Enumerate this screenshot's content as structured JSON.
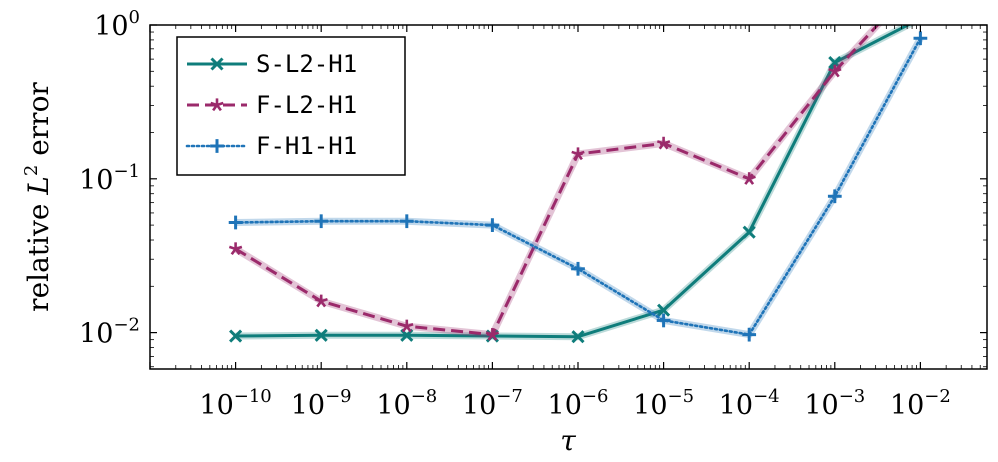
{
  "chart_data": {
    "type": "line",
    "xscale": "log",
    "yscale": "log",
    "xlabel": "τ",
    "ylabel": "relative L² error",
    "ylabel_parts": {
      "prefix": "relative ",
      "var": "L",
      "sup": "2",
      "suffix": " error"
    },
    "xlim": [
      1e-11,
      0.06
    ],
    "ylim": [
      0.0058,
      1.0
    ],
    "x_ticks": [
      {
        "value": 1e-10,
        "base": "10",
        "exp": "−10"
      },
      {
        "value": 1e-09,
        "base": "10",
        "exp": "−9"
      },
      {
        "value": 1e-08,
        "base": "10",
        "exp": "−8"
      },
      {
        "value": 1e-07,
        "base": "10",
        "exp": "−7"
      },
      {
        "value": 1e-06,
        "base": "10",
        "exp": "−6"
      },
      {
        "value": 1e-05,
        "base": "10",
        "exp": "−5"
      },
      {
        "value": 0.0001,
        "base": "10",
        "exp": "−4"
      },
      {
        "value": 0.001,
        "base": "10",
        "exp": "−3"
      },
      {
        "value": 0.01,
        "base": "10",
        "exp": "−2"
      }
    ],
    "y_ticks": [
      {
        "value": 0.01,
        "base": "10",
        "exp": "−2"
      },
      {
        "value": 0.1,
        "base": "10",
        "exp": "−1"
      },
      {
        "value": 1,
        "base": "10",
        "exp": "0"
      }
    ],
    "grid": false,
    "legend_position": "top-left",
    "series": [
      {
        "name": "S-L2-H1",
        "color": "#0f7d7b",
        "dash": "solid",
        "marker": "x",
        "x": [
          1e-10,
          1e-09,
          1e-08,
          1e-07,
          1e-06,
          1e-05,
          0.0001,
          0.001,
          0.01
        ],
        "y": [
          0.0095,
          0.0096,
          0.0096,
          0.0095,
          0.0094,
          0.014,
          0.045,
          0.57,
          1.1
        ]
      },
      {
        "name": "F-L2-H1",
        "color": "#9b2a6b",
        "dash": "dashed",
        "marker": "star",
        "x": [
          1e-10,
          1e-09,
          1e-08,
          1e-07,
          1e-06,
          1e-05,
          0.0001,
          0.001,
          0.01
        ],
        "y": [
          0.035,
          0.016,
          0.011,
          0.0097,
          0.145,
          0.17,
          0.1,
          0.5,
          2.0
        ]
      },
      {
        "name": "F-H1-H1",
        "color": "#1f74b8",
        "dash": "dotted",
        "marker": "plus",
        "x": [
          1e-10,
          1e-09,
          1e-08,
          1e-07,
          1e-06,
          1e-05,
          0.0001,
          0.001,
          0.01
        ],
        "y": [
          0.052,
          0.053,
          0.053,
          0.05,
          0.026,
          0.012,
          0.0097,
          0.077,
          0.82
        ]
      }
    ]
  }
}
